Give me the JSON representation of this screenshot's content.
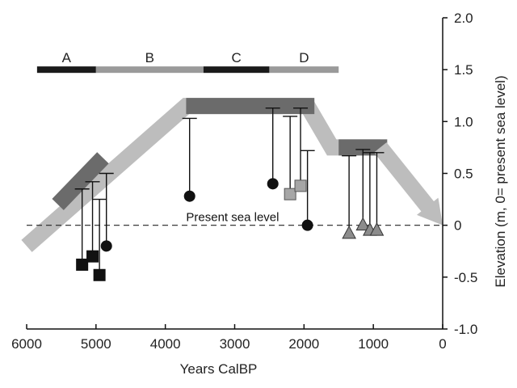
{
  "chart_data": {
    "type": "scatter",
    "xlabel": "Years CalBP",
    "ylabel": "Elevation (m, 0= present sea level)",
    "xlim": [
      6000,
      0
    ],
    "ylim": [
      -1.0,
      2.0
    ],
    "x_ticks": [
      6000,
      5000,
      4000,
      3000,
      2000,
      1000,
      0
    ],
    "x_tick_labels": [
      "6000",
      "5000",
      "4000",
      "3000",
      "2000",
      "1000",
      "0"
    ],
    "y_ticks": [
      -1.0,
      -0.5,
      0,
      0.5,
      1.0,
      1.5,
      2.0
    ],
    "y_tick_labels": [
      "-1.0",
      "-0.5",
      "0",
      "0.5",
      "1.0",
      "1.5",
      "2.0"
    ],
    "reference_line": {
      "y": 0,
      "label": "Present sea level"
    },
    "phases": [
      {
        "label": "A",
        "x_start": 5850,
        "x_end": 5000,
        "color": "#1a1a1a"
      },
      {
        "label": "B",
        "x_start": 5000,
        "x_end": 3450,
        "color": "#9a9a9a"
      },
      {
        "label": "C",
        "x_start": 3450,
        "x_end": 2500,
        "color": "#1a1a1a"
      },
      {
        "label": "D",
        "x_start": 2500,
        "x_end": 1500,
        "color": "#9a9a9a"
      }
    ],
    "sea_level_curve": {
      "light_path": [
        [
          6000,
          -0.2
        ],
        [
          3700,
          1.15
        ],
        [
          1950,
          1.15
        ],
        [
          1600,
          0.75
        ],
        [
          900,
          0.75
        ],
        [
          0,
          0
        ]
      ],
      "dark_segments": [
        [
          [
            5550,
            0.2
          ],
          [
            4900,
            0.65
          ]
        ],
        [
          [
            3700,
            1.15
          ],
          [
            1850,
            1.15
          ]
        ],
        [
          [
            1500,
            0.75
          ],
          [
            800,
            0.75
          ]
        ]
      ],
      "light_color": "#bdbdbd",
      "dark_color": "#6b6b6b"
    },
    "series": [
      {
        "marker": "square",
        "color": "#111111",
        "points": [
          {
            "x": 5200,
            "y": -0.38,
            "upper": 0.35
          },
          {
            "x": 5050,
            "y": -0.3,
            "upper": 0.42
          },
          {
            "x": 4950,
            "y": -0.48,
            "upper": 0.25
          }
        ]
      },
      {
        "marker": "circle",
        "color": "#111111",
        "points": [
          {
            "x": 4850,
            "y": -0.2,
            "upper": 0.5
          },
          {
            "x": 3650,
            "y": 0.28,
            "upper": 1.03
          },
          {
            "x": 2450,
            "y": 0.4,
            "upper": 1.13
          },
          {
            "x": 1950,
            "y": 0.0,
            "upper": 0.72
          }
        ]
      },
      {
        "marker": "square",
        "color": "#a6a6a6",
        "points": [
          {
            "x": 2200,
            "y": 0.3,
            "upper": 1.05
          },
          {
            "x": 2050,
            "y": 0.38,
            "upper": 1.13
          }
        ]
      },
      {
        "marker": "triangle",
        "color": "#8c8c8c",
        "points": [
          {
            "x": 1350,
            "y": -0.08,
            "upper": 0.67
          },
          {
            "x": 1150,
            "y": 0.0,
            "upper": 0.73
          },
          {
            "x": 1050,
            "y": -0.05,
            "upper": 0.7
          },
          {
            "x": 950,
            "y": -0.05,
            "upper": 0.7
          }
        ]
      }
    ]
  }
}
